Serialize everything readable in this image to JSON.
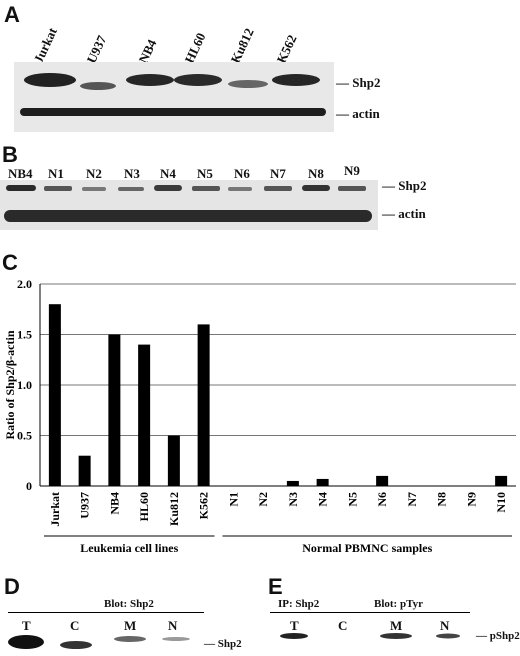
{
  "panels": {
    "A": {
      "letter": "A",
      "lanes": [
        "Jurkat",
        "U937",
        "NB4",
        "HL60",
        "Ku812",
        "K562"
      ],
      "bands": [
        "Shp2",
        "actin"
      ]
    },
    "B": {
      "letter": "B",
      "lanes": [
        "NB4",
        "N1",
        "N2",
        "N3",
        "N4",
        "N5",
        "N6",
        "N7",
        "N8",
        "N9"
      ],
      "bands": [
        "Shp2",
        "actin"
      ]
    },
    "C": {
      "letter": "C"
    },
    "D": {
      "letter": "D",
      "blot_label": "Blot: Shp2",
      "lanes": [
        "T",
        "C",
        "M",
        "N"
      ],
      "band": "Shp2"
    },
    "E": {
      "letter": "E",
      "ip_label": "IP: Shp2",
      "blot_label": "Blot: pTyr",
      "lanes": [
        "T",
        "C",
        "M",
        "N"
      ],
      "band": "pShp2"
    }
  },
  "chart_data": {
    "type": "bar",
    "ylabel": "Ratio of Shp2/β-actin",
    "ylim": [
      0,
      2.0
    ],
    "yticks": [
      "0",
      "0.5",
      "1.0",
      "1.5",
      "2.0"
    ],
    "categories": [
      "Jurkat",
      "U937",
      "NB4",
      "HL60",
      "Ku812",
      "K562",
      "N1",
      "N2",
      "N3",
      "N4",
      "N5",
      "N6",
      "N7",
      "N8",
      "N9",
      "N10"
    ],
    "values": [
      1.8,
      0.3,
      1.5,
      1.4,
      0.5,
      1.6,
      0,
      0,
      0.05,
      0.07,
      0,
      0.1,
      0,
      0,
      0,
      0.1
    ],
    "groups": [
      {
        "label": "Leukemia cell lines"
      },
      {
        "label": "Normal PBMNC samples"
      }
    ],
    "grid": true,
    "bar_color": "#000000"
  }
}
